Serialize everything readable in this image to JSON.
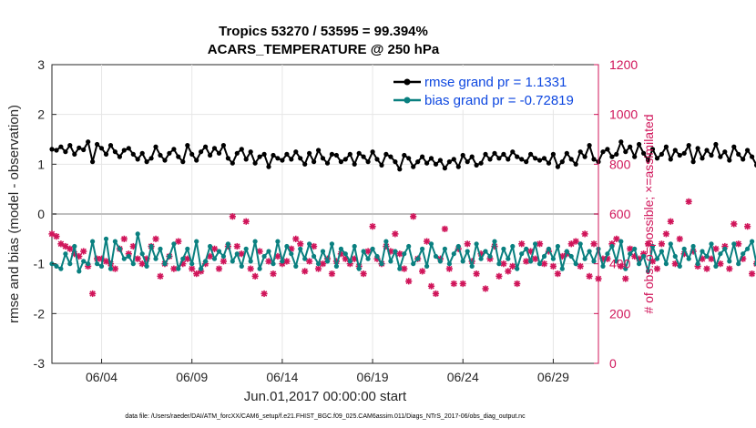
{
  "chart_data": {
    "type": "line",
    "title_line1": "Tropics 53270 / 53595 = 99.394%",
    "title_line2": "ACARS_TEMPERATURE @ 250 hPa",
    "ylabel": "rmse and bias (model - observation)",
    "ylabel_right": "# of obs: o=possible; ×=assimilated",
    "xlabel": "Jun.01,2017 00:00:00 start",
    "footer": "data file: /Users/raeder/DAI/ATM_forcXX/CAM6_setup/f.e21.FHIST_BGC.f09_025.CAM6assim.011/Diags_NTrS_2017-06/obs_diag_output.nc",
    "ylim": [
      -3,
      3
    ],
    "ylim_right": [
      0,
      1200
    ],
    "y_ticks": [
      "3",
      "2",
      "1",
      "0",
      "-1",
      "-2",
      "-3"
    ],
    "y_right_ticks": [
      "1200",
      "1000",
      "800",
      "600",
      "400",
      "200",
      "0"
    ],
    "x_tick_labels": [
      "06/04",
      "06/09",
      "06/14",
      "06/19",
      "06/24",
      "06/29"
    ],
    "x_tick_days": [
      4,
      9,
      14,
      19,
      24,
      29
    ],
    "x_range_days": [
      1.25,
      31.5
    ],
    "step_days": 0.25,
    "legend": [
      "rmse grand pr = 1.1331",
      "bias grand pr = -0.72819"
    ],
    "colors": {
      "rmse": "#000000",
      "bias": "#0a8080",
      "obs": "#d0155a",
      "zero": "#bfbfbf"
    },
    "series": [
      {
        "name": "rmse",
        "values": [
          1.3,
          1.28,
          1.35,
          1.25,
          1.38,
          1.2,
          1.33,
          1.29,
          1.45,
          1.05,
          1.4,
          1.32,
          1.2,
          1.38,
          1.25,
          1.15,
          1.28,
          1.32,
          1.2,
          1.1,
          1.22,
          1.05,
          1.12,
          1.35,
          1.18,
          1.08,
          1.22,
          1.3,
          1.15,
          1.05,
          1.38,
          1.2,
          1.08,
          1.25,
          1.35,
          1.18,
          1.32,
          1.22,
          1.38,
          1.12,
          1.02,
          1.22,
          1.3,
          1.1,
          1.25,
          1.02,
          1.15,
          1.2,
          0.95,
          1.18,
          1.12,
          1.08,
          1.2,
          1.1,
          1.25,
          1.12,
          1.0,
          1.22,
          1.05,
          1.28,
          1.12,
          1.02,
          1.2,
          1.18,
          1.05,
          1.1,
          1.2,
          1.0,
          1.22,
          1.15,
          1.05,
          1.25,
          1.1,
          0.98,
          1.2,
          1.15,
          1.05,
          0.9,
          1.18,
          1.12,
          0.95,
          1.05,
          1.15,
          1.02,
          1.12,
          1.0,
          1.08,
          0.92,
          1.05,
          1.1,
          0.95,
          1.18,
          1.05,
          1.15,
          0.98,
          1.02,
          1.2,
          1.1,
          1.22,
          1.12,
          1.2,
          1.1,
          1.25,
          1.15,
          1.1,
          1.05,
          1.2,
          1.12,
          1.08,
          1.12,
          1.02,
          1.2,
          0.95,
          1.05,
          1.22,
          1.1,
          1.0,
          1.25,
          1.15,
          1.38,
          1.1,
          1.05,
          1.25,
          1.3,
          1.15,
          1.2,
          1.45,
          1.25,
          1.35,
          1.15,
          1.4,
          1.22,
          1.08,
          1.3,
          1.12,
          1.2,
          1.35,
          1.1,
          1.28,
          1.18,
          1.22,
          1.38,
          1.05,
          1.32,
          1.12,
          1.28,
          1.18,
          1.4,
          1.15,
          1.25,
          1.08,
          1.35,
          1.2,
          1.1,
          1.28,
          1.15,
          0.98,
          1.2,
          1.1,
          1.05,
          1.25,
          1.15,
          1.32,
          1.2,
          1.05,
          1.15,
          1.38,
          1.05,
          1.28,
          1.12,
          1.22,
          1.3,
          1.1,
          1.2,
          1.42,
          1.28,
          1.15,
          1.4,
          1.32,
          1.2,
          1.35,
          1.25,
          1.1,
          1.3,
          1.2,
          1.15,
          1.28,
          1.4,
          1.18,
          1.3,
          1.25,
          1.1,
          1.32,
          1.2,
          1.15,
          1.05,
          1.25,
          1.38,
          1.22,
          1.1,
          1.28,
          1.2,
          1.35,
          1.15,
          1.25,
          1.1,
          1.3,
          1.22,
          1.15,
          1.25,
          1.2,
          1.12
        ]
      },
      {
        "name": "bias",
        "values": [
          -1.0,
          -1.05,
          -1.1,
          -0.8,
          -1.0,
          -0.65,
          -1.15,
          -0.95,
          -1.0,
          -0.55,
          -1.0,
          -1.05,
          -0.5,
          -1.1,
          -0.55,
          -0.7,
          -0.9,
          -0.85,
          -1.0,
          -0.4,
          -0.8,
          -1.05,
          -0.65,
          -0.9,
          -0.7,
          -1.0,
          -0.85,
          -0.6,
          -1.1,
          -0.9,
          -0.7,
          -1.0,
          -0.55,
          -1.1,
          -0.95,
          -0.65,
          -0.9,
          -0.75,
          -0.85,
          -0.6,
          -0.95,
          -0.8,
          -1.05,
          -0.7,
          -0.95,
          -0.55,
          -1.1,
          -0.85,
          -0.75,
          -1.0,
          -0.55,
          -0.95,
          -0.65,
          -0.8,
          -1.05,
          -0.7,
          -0.9,
          -0.6,
          -0.85,
          -1.0,
          -0.75,
          -0.95,
          -0.6,
          -1.05,
          -0.7,
          -0.8,
          -0.95,
          -0.65,
          -1.1,
          -0.75,
          -0.9,
          -0.7,
          -0.85,
          -1.0,
          -0.55,
          -0.95,
          -0.75,
          -1.1,
          -0.8,
          -0.65,
          -1.0,
          -0.9,
          -0.7,
          -1.05,
          -0.6,
          -0.85,
          -0.95,
          -0.7,
          -1.0,
          -0.8,
          -0.65,
          -0.95,
          -0.75,
          -1.05,
          -0.6,
          -0.9,
          -0.75,
          -0.85,
          -0.55,
          -1.0,
          -0.7,
          -0.9,
          -0.65,
          -1.1,
          -0.8,
          -0.7,
          -0.95,
          -0.6,
          -1.0,
          -0.85,
          -0.7,
          -0.9,
          -0.65,
          -1.1,
          -0.75,
          -0.85,
          -1.0,
          -0.6,
          -0.9,
          -0.75,
          -0.95,
          -0.7,
          -1.05,
          -0.8,
          -0.65,
          -0.95,
          -0.55,
          -1.1,
          -0.8,
          -0.7,
          -1.0,
          -0.85,
          -1.15,
          -0.65,
          -0.9,
          -0.75,
          -1.0,
          -0.6,
          -0.85,
          -1.05,
          -0.7,
          -0.9,
          -0.65,
          -1.0,
          -0.75,
          -0.85,
          -0.6,
          -1.05,
          -0.8,
          -0.7,
          -0.95,
          -0.6,
          -1.0,
          -0.8,
          -0.7,
          -0.55,
          -1.0,
          -0.8,
          -0.95,
          -0.7,
          -1.05,
          -0.85,
          -0.65,
          -0.9,
          -0.75,
          -0.55,
          -1.0,
          -0.8,
          -0.9,
          -0.65,
          -1.05,
          -0.75,
          -0.85,
          -0.95,
          -0.7,
          -0.9,
          -1.05,
          -0.8,
          -0.65,
          -0.95,
          -0.75,
          -1.1,
          -0.8,
          -0.7,
          -0.95,
          -0.85,
          -0.6,
          -1.0,
          -0.75,
          -0.85,
          -1.05,
          -0.7,
          -0.9,
          -0.6,
          -0.95,
          -0.8,
          -0.65,
          -1.0,
          -0.75,
          -0.9,
          -0.8,
          -0.7,
          -0.95,
          -0.85,
          -0.7,
          -1.0,
          -0.8,
          -0.65,
          -0.95,
          -0.75,
          -0.9,
          -0.65
        ]
      },
      {
        "name": "obs_count",
        "values": [
          520,
          510,
          480,
          470,
          460,
          440,
          430,
          450,
          390,
          280,
          420,
          420,
          410,
          400,
          380,
          460,
          500,
          440,
          470,
          420,
          400,
          420,
          470,
          500,
          350,
          400,
          430,
          380,
          490,
          400,
          420,
          380,
          360,
          370,
          400,
          430,
          460,
          380,
          410,
          470,
          590,
          470,
          440,
          570,
          380,
          350,
          450,
          280,
          410,
          360,
          430,
          400,
          410,
          460,
          500,
          480,
          370,
          410,
          470,
          380,
          400,
          420,
          360,
          410,
          440,
          420,
          400,
          420,
          390,
          360,
          450,
          550,
          420,
          400,
          470,
          450,
          520,
          440,
          380,
          330,
          590,
          420,
          370,
          490,
          310,
          280,
          420,
          540,
          380,
          320,
          460,
          320,
          480,
          410,
          360,
          440,
          300,
          420,
          470,
          350,
          400,
          370,
          390,
          320,
          480,
          410,
          450,
          420,
          480,
          400,
          450,
          390,
          360,
          430,
          440,
          480,
          490,
          390,
          520,
          350,
          480,
          340,
          420,
          420,
          480,
          500,
          390,
          340,
          460,
          430,
          420,
          440,
          480,
          410,
          380,
          480,
          520,
          570,
          400,
          500,
          440,
          650,
          450,
          390,
          420,
          380,
          420,
          460,
          400,
          470,
          380,
          560,
          480,
          420,
          550,
          360,
          400,
          430,
          440,
          420,
          390,
          370,
          490,
          420,
          420,
          440,
          500,
          480,
          420,
          380,
          450,
          420,
          500,
          380,
          340,
          480,
          420,
          420,
          440,
          400,
          460,
          440,
          640,
          440,
          500,
          520,
          610,
          410,
          390,
          440,
          510,
          380,
          500,
          450,
          470,
          420,
          430,
          480,
          520,
          370,
          460,
          440,
          500,
          410,
          480,
          480,
          450,
          480,
          420,
          370,
          480,
          680,
          410,
          460,
          500,
          410,
          370,
          430,
          350,
          400,
          420,
          490,
          450,
          390,
          400,
          420,
          480,
          430,
          0
        ]
      }
    ]
  }
}
